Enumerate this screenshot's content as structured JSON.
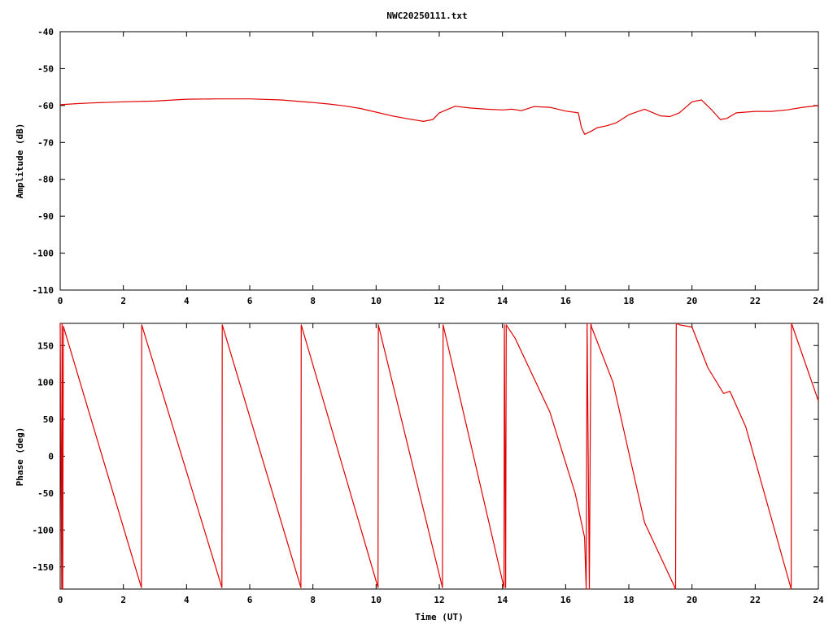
{
  "chart_data": [
    {
      "type": "line",
      "title": "NWC20250111.txt",
      "xlabel": "",
      "ylabel": "Amplitude (dB)",
      "xlim": [
        0,
        24
      ],
      "ylim": [
        -110,
        -40
      ],
      "xticks": [
        "0",
        "2",
        "4",
        "6",
        "8",
        "10",
        "12",
        "14",
        "16",
        "18",
        "20",
        "22",
        "24"
      ],
      "yticks": [
        "-40",
        "-50",
        "-60",
        "-70",
        "-80",
        "-90",
        "-100",
        "-110"
      ],
      "grid": false,
      "color": "#e00000",
      "series": [
        {
          "x": [
            0,
            0.5,
            1,
            2,
            3,
            4,
            5,
            6,
            7,
            8,
            8.5,
            9,
            9.5,
            10,
            10.5,
            11,
            11.5,
            11.8,
            12,
            12.5,
            13,
            13.5,
            14,
            14.3,
            14.6,
            15,
            15.5,
            16,
            16.4,
            16.5,
            16.6,
            16.8,
            17,
            17.3,
            17.6,
            18,
            18.5,
            19,
            19.3,
            19.6,
            20,
            20.3,
            20.6,
            20.9,
            21.1,
            21.4,
            22,
            22.5,
            23,
            23.5,
            24
          ],
          "y": [
            -59.8,
            -59.5,
            -59.3,
            -59.0,
            -58.8,
            -58.3,
            -58.2,
            -58.2,
            -58.5,
            -59.2,
            -59.6,
            -60.1,
            -60.8,
            -61.8,
            -62.8,
            -63.6,
            -64.3,
            -63.8,
            -62.0,
            -60.2,
            -60.7,
            -61.0,
            -61.2,
            -61.0,
            -61.4,
            -60.3,
            -60.5,
            -61.5,
            -62.0,
            -66.0,
            -67.8,
            -67.0,
            -66.0,
            -65.5,
            -64.7,
            -62.5,
            -61.0,
            -62.8,
            -63.0,
            -62.0,
            -59.0,
            -58.5,
            -61.0,
            -63.8,
            -63.5,
            -62.0,
            -61.6,
            -61.6,
            -61.2,
            -60.5,
            -60.0
          ]
        }
      ]
    },
    {
      "type": "line",
      "title": "",
      "xlabel": "Time (UT)",
      "ylabel": "Phase (deg)",
      "xlim": [
        0,
        24
      ],
      "ylim": [
        -180,
        180
      ],
      "xticks": [
        "0",
        "2",
        "4",
        "6",
        "8",
        "10",
        "12",
        "14",
        "16",
        "18",
        "20",
        "22",
        "24"
      ],
      "yticks": [
        "150",
        "100",
        "50",
        "0",
        "-50",
        "-100",
        "-150"
      ],
      "grid": false,
      "color": "#e00000",
      "series": [
        {
          "x": [
            0,
            0.05,
            0.06,
            0.08,
            0.1,
            2.57,
            2.58,
            5.12,
            5.13,
            7.62,
            7.63,
            10.06,
            10.07,
            12.1,
            12.12,
            14.05,
            14.06,
            14.1,
            14.12,
            14.4,
            15.5,
            16.3,
            16.6,
            16.65,
            16.68,
            16.75,
            16.8,
            16.82,
            17.5,
            18.5,
            19.48,
            19.5,
            19.55,
            19.6,
            20.0,
            20.5,
            21.0,
            21.2,
            21.7,
            23.14,
            23.15,
            24.0
          ],
          "y": [
            180,
            -180,
            180,
            -180,
            176,
            -178,
            178,
            -178,
            178,
            -178,
            178,
            -178,
            178,
            -178,
            178,
            -178,
            178,
            -178,
            178,
            160,
            60,
            -50,
            -110,
            -180,
            180,
            -180,
            180,
            175,
            100,
            -90,
            -180,
            178,
            180,
            178,
            175,
            120,
            85,
            88,
            40,
            -180,
            180,
            75
          ]
        }
      ]
    }
  ]
}
